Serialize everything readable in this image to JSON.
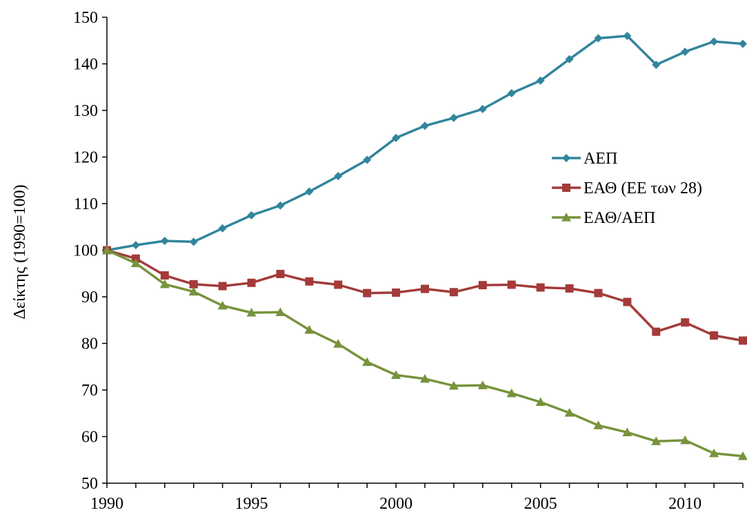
{
  "chart_data": {
    "type": "line",
    "ylabel": "Δείκτης (1990=100)",
    "xlabel": "",
    "ylim": [
      50,
      150
    ],
    "xlim": [
      1990,
      2012
    ],
    "yticks": [
      50,
      60,
      70,
      80,
      90,
      100,
      110,
      120,
      130,
      140,
      150
    ],
    "xticks": [
      1990,
      1995,
      2000,
      2005,
      2010
    ],
    "grid": false,
    "legend_position": "right",
    "x": [
      1990,
      1991,
      1992,
      1993,
      1994,
      1995,
      1996,
      1997,
      1998,
      1999,
      2000,
      2001,
      2002,
      2003,
      2004,
      2005,
      2006,
      2007,
      2008,
      2009,
      2010,
      2011,
      2012
    ],
    "series": [
      {
        "name": "ΑΕΠ",
        "color": "#31859C",
        "marker": "diamond",
        "values": [
          100,
          101.1,
          102.0,
          101.8,
          104.7,
          107.5,
          109.6,
          112.6,
          115.9,
          119.4,
          124.1,
          126.7,
          128.4,
          130.3,
          133.7,
          136.4,
          141.0,
          145.5,
          146.0,
          139.8,
          142.6,
          144.8,
          144.3
        ]
      },
      {
        "name": "ΕΑΘ (ΕΕ των 28)",
        "color": "#A33B3A",
        "marker": "square",
        "values": [
          100,
          98.2,
          94.6,
          92.7,
          92.3,
          93.0,
          94.9,
          93.3,
          92.6,
          90.8,
          90.9,
          91.7,
          91.0,
          92.5,
          92.6,
          92.0,
          91.8,
          90.8,
          88.9,
          82.5,
          84.5,
          81.7,
          80.6
        ]
      },
      {
        "name": "ΕΑΘ/ΑΕΠ",
        "color": "#77933C",
        "marker": "triangle",
        "values": [
          100,
          97.2,
          92.7,
          91.1,
          88.1,
          86.6,
          86.7,
          82.9,
          79.9,
          76.0,
          73.2,
          72.4,
          70.9,
          71.0,
          69.3,
          67.4,
          65.1,
          62.4,
          60.9,
          59.0,
          59.2,
          56.4,
          55.8
        ]
      }
    ]
  }
}
